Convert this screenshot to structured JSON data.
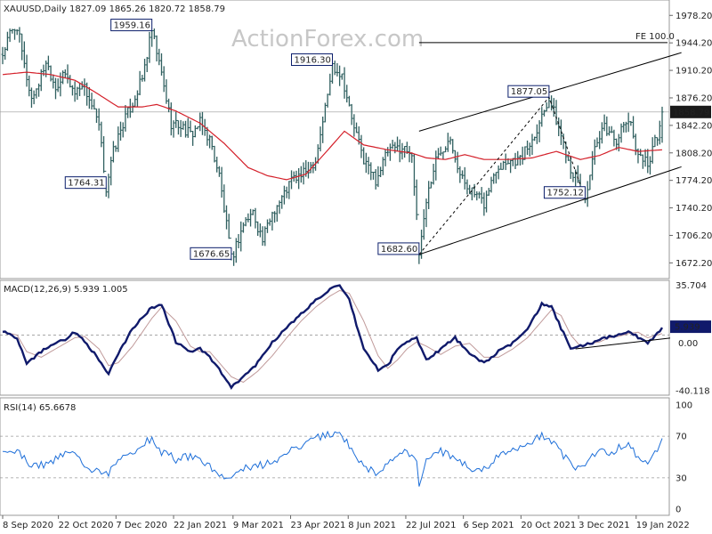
{
  "chart_data": {
    "type": "line",
    "main": {
      "header": "XAUUSD,Daily  1827.09 1865.26 1820.72 1858.79",
      "ylim": [
        1655,
        1995
      ],
      "y_ticks": [
        "1978.20",
        "1944.20",
        "1910.20",
        "1876.20",
        "1842.20",
        "1808.20",
        "1774.20",
        "1740.20",
        "1706.20",
        "1672.20"
      ],
      "last_price": "1858.79",
      "callouts": [
        {
          "label": "1959.16",
          "i": 62,
          "y": 1959.16
        },
        {
          "label": "1764.31",
          "i": 43,
          "y": 1764.31
        },
        {
          "label": "1916.30",
          "i": 137,
          "y": 1916.3
        },
        {
          "label": "1676.65",
          "i": 95,
          "y": 1676.65
        },
        {
          "label": "1682.60",
          "i": 173,
          "y": 1682.6
        },
        {
          "label": "1877.05",
          "i": 227,
          "y": 1877.05
        },
        {
          "label": "1752.12",
          "i": 242,
          "y": 1752.12
        }
      ],
      "fe_label": "FE 100.0",
      "fe_level": 1944.5,
      "price_points": [
        [
          0,
          1930
        ],
        [
          3,
          1955
        ],
        [
          6,
          1965
        ],
        [
          9,
          1915
        ],
        [
          12,
          1875
        ],
        [
          15,
          1895
        ],
        [
          18,
          1922
        ],
        [
          22,
          1890
        ],
        [
          26,
          1905
        ],
        [
          30,
          1882
        ],
        [
          33,
          1895
        ],
        [
          36,
          1875
        ],
        [
          40,
          1840
        ],
        [
          43,
          1764.31
        ],
        [
          46,
          1810
        ],
        [
          50,
          1845
        ],
        [
          54,
          1870
        ],
        [
          58,
          1900
        ],
        [
          62,
          1959.16
        ],
        [
          66,
          1905
        ],
        [
          70,
          1845
        ],
        [
          74,
          1842
        ],
        [
          78,
          1830
        ],
        [
          82,
          1845
        ],
        [
          86,
          1825
        ],
        [
          90,
          1780
        ],
        [
          95,
          1676.65
        ],
        [
          100,
          1720
        ],
        [
          104,
          1735
        ],
        [
          108,
          1700
        ],
        [
          112,
          1735
        ],
        [
          116,
          1752
        ],
        [
          120,
          1775
        ],
        [
          125,
          1782
        ],
        [
          130,
          1800
        ],
        [
          135,
          1880
        ],
        [
          137,
          1916.3
        ],
        [
          141,
          1905
        ],
        [
          145,
          1850
        ],
        [
          150,
          1800
        ],
        [
          155,
          1775
        ],
        [
          160,
          1810
        ],
        [
          165,
          1815
        ],
        [
          170,
          1810
        ],
        [
          173,
          1682.6
        ],
        [
          176,
          1750
        ],
        [
          180,
          1800
        ],
        [
          186,
          1830
        ],
        [
          190,
          1780
        ],
        [
          195,
          1760
        ],
        [
          200,
          1745
        ],
        [
          205,
          1790
        ],
        [
          210,
          1800
        ],
        [
          215,
          1800
        ],
        [
          220,
          1825
        ],
        [
          227,
          1877.05
        ],
        [
          232,
          1830
        ],
        [
          236,
          1790
        ],
        [
          242,
          1752.12
        ],
        [
          246,
          1810
        ],
        [
          250,
          1840
        ],
        [
          255,
          1825
        ],
        [
          260,
          1850
        ],
        [
          264,
          1808
        ],
        [
          268,
          1795
        ],
        [
          272,
          1830
        ],
        [
          274,
          1858.79
        ]
      ],
      "ma_points": [
        [
          0,
          1905
        ],
        [
          10,
          1908
        ],
        [
          20,
          1905
        ],
        [
          30,
          1898
        ],
        [
          38,
          1884
        ],
        [
          48,
          1865
        ],
        [
          58,
          1865
        ],
        [
          64,
          1868
        ],
        [
          72,
          1860
        ],
        [
          82,
          1845
        ],
        [
          92,
          1820
        ],
        [
          102,
          1790
        ],
        [
          110,
          1780
        ],
        [
          118,
          1775
        ],
        [
          126,
          1782
        ],
        [
          134,
          1808
        ],
        [
          142,
          1835
        ],
        [
          150,
          1818
        ],
        [
          160,
          1812
        ],
        [
          170,
          1808
        ],
        [
          176,
          1802
        ],
        [
          184,
          1800
        ],
        [
          192,
          1806
        ],
        [
          200,
          1800
        ],
        [
          210,
          1800
        ],
        [
          220,
          1802
        ],
        [
          230,
          1810
        ],
        [
          240,
          1800
        ],
        [
          248,
          1805
        ],
        [
          256,
          1815
        ],
        [
          264,
          1810
        ],
        [
          274,
          1812
        ]
      ],
      "channel_lower": [
        [
          173,
          1682.6
        ],
        [
          274,
          1783
        ]
      ],
      "channel_upper": [
        [
          173,
          1835
        ],
        [
          274,
          1925
        ]
      ],
      "dashed": [
        [
          173,
          1682.6
        ],
        [
          227,
          1877.05
        ],
        [
          242,
          1752.12
        ]
      ]
    },
    "macd": {
      "header": "MACD(12,26,9) 5.939 1.005",
      "ylim": [
        -42,
        38
      ],
      "y_ticks": [
        "35.704",
        "-40.118"
      ],
      "values_label": [
        "5.939",
        "0.00"
      ],
      "line": [
        [
          0,
          3
        ],
        [
          6,
          -2
        ],
        [
          10,
          -20
        ],
        [
          16,
          -12
        ],
        [
          22,
          -5
        ],
        [
          26,
          -3
        ],
        [
          30,
          2
        ],
        [
          34,
          -4
        ],
        [
          40,
          -18
        ],
        [
          44,
          -28
        ],
        [
          48,
          -14
        ],
        [
          54,
          5
        ],
        [
          58,
          12
        ],
        [
          62,
          20
        ],
        [
          66,
          22
        ],
        [
          72,
          -5
        ],
        [
          78,
          -12
        ],
        [
          82,
          -10
        ],
        [
          86,
          -16
        ],
        [
          90,
          -25
        ],
        [
          95,
          -38
        ],
        [
          100,
          -30
        ],
        [
          106,
          -20
        ],
        [
          112,
          -5
        ],
        [
          118,
          5
        ],
        [
          124,
          15
        ],
        [
          130,
          25
        ],
        [
          136,
          33
        ],
        [
          140,
          35
        ],
        [
          144,
          25
        ],
        [
          150,
          -10
        ],
        [
          156,
          -25
        ],
        [
          160,
          -22
        ],
        [
          164,
          -10
        ],
        [
          168,
          -5
        ],
        [
          172,
          -2
        ],
        [
          176,
          -18
        ],
        [
          182,
          -10
        ],
        [
          188,
          -2
        ],
        [
          194,
          -14
        ],
        [
          200,
          -20
        ],
        [
          206,
          -12
        ],
        [
          212,
          -6
        ],
        [
          218,
          5
        ],
        [
          224,
          22
        ],
        [
          228,
          20
        ],
        [
          232,
          5
        ],
        [
          236,
          -10
        ],
        [
          240,
          -8
        ],
        [
          244,
          -6
        ],
        [
          248,
          -4
        ],
        [
          252,
          -1
        ],
        [
          256,
          0
        ],
        [
          260,
          3
        ],
        [
          264,
          -2
        ],
        [
          268,
          -6
        ],
        [
          274,
          5
        ]
      ],
      "signal": [
        [
          0,
          2
        ],
        [
          6,
          0
        ],
        [
          10,
          -12
        ],
        [
          16,
          -16
        ],
        [
          22,
          -10
        ],
        [
          26,
          -6
        ],
        [
          30,
          -2
        ],
        [
          34,
          -1
        ],
        [
          40,
          -10
        ],
        [
          44,
          -22
        ],
        [
          48,
          -20
        ],
        [
          54,
          -8
        ],
        [
          58,
          2
        ],
        [
          62,
          12
        ],
        [
          66,
          20
        ],
        [
          72,
          10
        ],
        [
          78,
          -8
        ],
        [
          82,
          -12
        ],
        [
          86,
          -12
        ],
        [
          90,
          -20
        ],
        [
          95,
          -30
        ],
        [
          100,
          -34
        ],
        [
          106,
          -26
        ],
        [
          112,
          -15
        ],
        [
          118,
          -2
        ],
        [
          124,
          10
        ],
        [
          130,
          20
        ],
        [
          136,
          28
        ],
        [
          140,
          32
        ],
        [
          144,
          30
        ],
        [
          150,
          10
        ],
        [
          156,
          -15
        ],
        [
          160,
          -24
        ],
        [
          164,
          -18
        ],
        [
          168,
          -10
        ],
        [
          172,
          -5
        ],
        [
          176,
          -8
        ],
        [
          182,
          -14
        ],
        [
          188,
          -8
        ],
        [
          194,
          -6
        ],
        [
          200,
          -16
        ],
        [
          206,
          -16
        ],
        [
          212,
          -10
        ],
        [
          218,
          -2
        ],
        [
          224,
          10
        ],
        [
          228,
          18
        ],
        [
          232,
          14
        ],
        [
          236,
          0
        ],
        [
          240,
          -8
        ],
        [
          244,
          -6
        ],
        [
          248,
          -5
        ],
        [
          252,
          -2
        ],
        [
          256,
          -1
        ],
        [
          260,
          1
        ],
        [
          264,
          2
        ],
        [
          268,
          -2
        ],
        [
          274,
          1
        ]
      ],
      "trend": [
        [
          238,
          -10
        ],
        [
          274,
          -2
        ]
      ]
    },
    "rsi": {
      "header": "RSI(14) 65.6678",
      "ylim": [
        0,
        100
      ],
      "y_ticks": [
        "100",
        "70",
        "30",
        "0"
      ],
      "levels": [
        70,
        30
      ],
      "line": [
        [
          0,
          55
        ],
        [
          6,
          58
        ],
        [
          10,
          45
        ],
        [
          16,
          42
        ],
        [
          22,
          48
        ],
        [
          26,
          55
        ],
        [
          30,
          52
        ],
        [
          36,
          40
        ],
        [
          43,
          33
        ],
        [
          48,
          45
        ],
        [
          54,
          55
        ],
        [
          58,
          62
        ],
        [
          62,
          68
        ],
        [
          66,
          55
        ],
        [
          72,
          48
        ],
        [
          78,
          50
        ],
        [
          82,
          45
        ],
        [
          86,
          40
        ],
        [
          90,
          35
        ],
        [
          95,
          27
        ],
        [
          100,
          40
        ],
        [
          106,
          42
        ],
        [
          112,
          45
        ],
        [
          118,
          55
        ],
        [
          124,
          60
        ],
        [
          130,
          68
        ],
        [
          136,
          72
        ],
        [
          140,
          74
        ],
        [
          144,
          60
        ],
        [
          150,
          40
        ],
        [
          156,
          35
        ],
        [
          160,
          45
        ],
        [
          164,
          52
        ],
        [
          168,
          55
        ],
        [
          172,
          45
        ],
        [
          173,
          25
        ],
        [
          176,
          45
        ],
        [
          182,
          55
        ],
        [
          188,
          48
        ],
        [
          194,
          40
        ],
        [
          200,
          38
        ],
        [
          206,
          50
        ],
        [
          212,
          55
        ],
        [
          218,
          62
        ],
        [
          224,
          70
        ],
        [
          228,
          66
        ],
        [
          232,
          55
        ],
        [
          236,
          42
        ],
        [
          240,
          40
        ],
        [
          244,
          48
        ],
        [
          248,
          58
        ],
        [
          252,
          52
        ],
        [
          256,
          60
        ],
        [
          260,
          62
        ],
        [
          264,
          48
        ],
        [
          268,
          45
        ],
        [
          272,
          55
        ],
        [
          274,
          65
        ]
      ]
    },
    "x_labels": [
      "8 Sep 2020",
      "22 Oct 2020",
      "7 Dec 2020",
      "22 Jan 2021",
      "9 Mar 2021",
      "23 Apr 2021",
      "8 Jun 2021",
      "22 Jul 2021",
      "6 Sep 2021",
      "20 Oct 2021",
      "3 Dec 2021",
      "19 Jan 2022"
    ],
    "x_label_index": [
      0,
      30,
      61,
      92,
      124,
      155,
      186,
      217,
      248,
      279,
      310,
      341
    ],
    "watermark": "ActionForex.com"
  }
}
